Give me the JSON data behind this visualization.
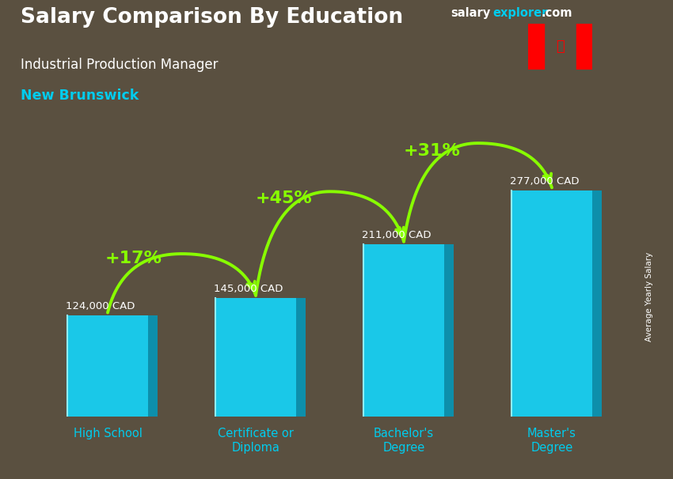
{
  "title_salary": "Salary Comparison By Education",
  "subtitle_job": "Industrial Production Manager",
  "subtitle_location": "New Brunswick",
  "categories": [
    "High School",
    "Certificate or\nDiploma",
    "Bachelor's\nDegree",
    "Master's\nDegree"
  ],
  "values": [
    124000,
    145000,
    211000,
    277000
  ],
  "value_labels": [
    "124,000 CAD",
    "145,000 CAD",
    "211,000 CAD",
    "277,000 CAD"
  ],
  "pct_labels": [
    "+17%",
    "+45%",
    "+31%"
  ],
  "bar_color_face": "#1ac8e8",
  "bar_color_side": "#0d8fab",
  "bar_color_top": "#60dff0",
  "bar_color_highlight": "#90eeff",
  "bg_color": "#5a5040",
  "text_color_white": "#ffffff",
  "text_color_cyan": "#00ccee",
  "text_color_green": "#88ff00",
  "ylabel_text": "Average Yearly Salary",
  "site_salary": "salary",
  "site_explorer": "explorer",
  "site_com": ".com",
  "ylim_max": 340000,
  "bar_width": 0.55,
  "bar_spacing": 1.0
}
